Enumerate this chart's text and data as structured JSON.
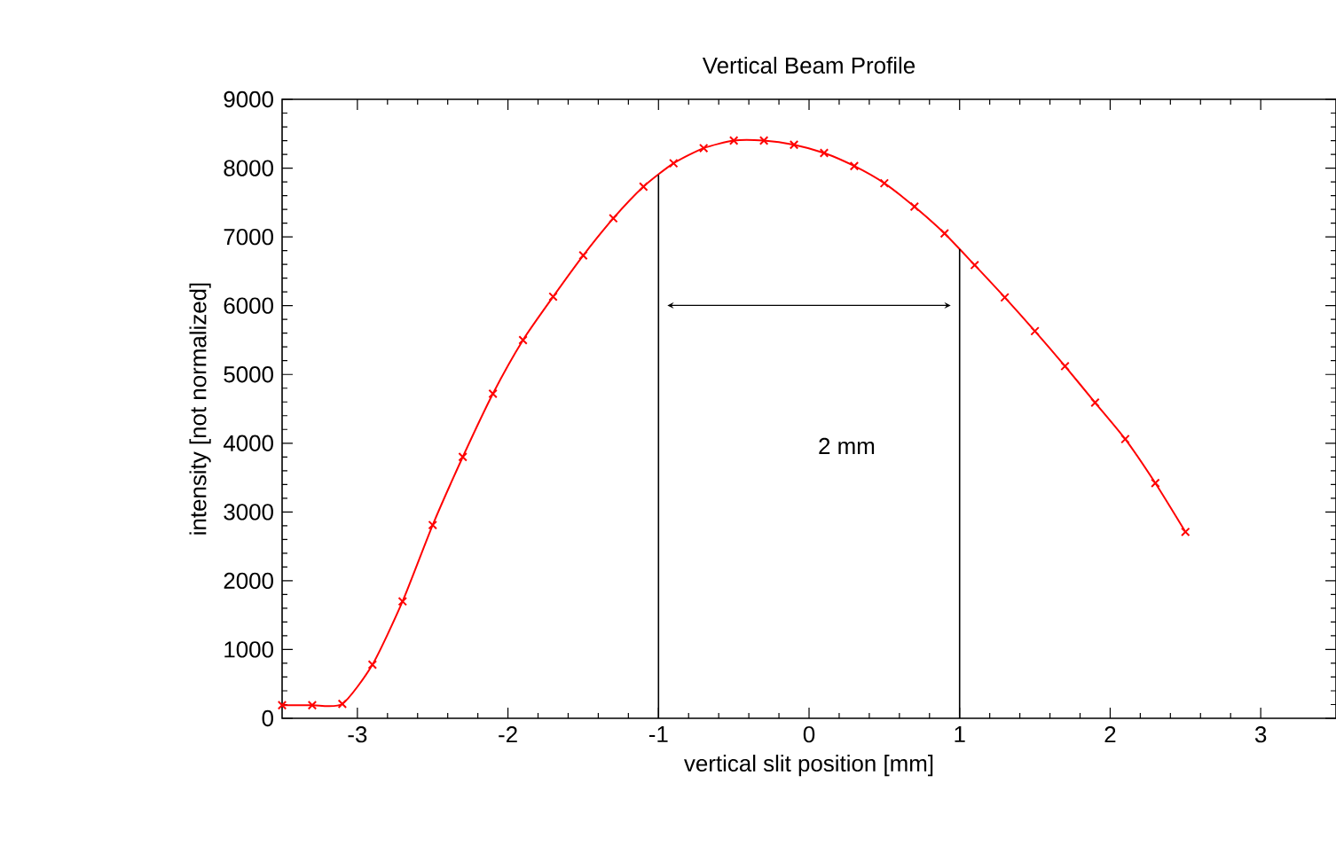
{
  "chart_data": {
    "type": "line",
    "title": "Vertical Beam Profile",
    "xlabel": "vertical slit position [mm]",
    "ylabel": "intensity [not normalized]",
    "x": [
      -3.5,
      -3.3,
      -3.1,
      -2.9,
      -2.7,
      -2.5,
      -2.3,
      -2.1,
      -1.9,
      -1.7,
      -1.5,
      -1.3,
      -1.1,
      -0.9,
      -0.7,
      -0.5,
      -0.3,
      -0.1,
      0.1,
      0.3,
      0.5,
      0.7,
      0.9,
      1.1,
      1.3,
      1.5,
      1.7,
      1.9,
      2.1,
      2.3,
      2.5
    ],
    "series": [
      {
        "color": "#ff0000",
        "values": [
          190,
          190,
          210,
          780,
          1700,
          2810,
          3800,
          4720,
          5500,
          6130,
          6730,
          7270,
          7730,
          8070,
          8290,
          8400,
          8400,
          8340,
          8220,
          8030,
          7780,
          7440,
          7050,
          6590,
          6120,
          5630,
          5120,
          4590,
          4060,
          3420,
          2710
        ]
      }
    ],
    "xlim": [
      -3.5,
      3.5
    ],
    "ylim": [
      0,
      9000
    ],
    "xticks": [
      -3,
      -2,
      -1,
      0,
      1,
      2,
      3
    ],
    "yticks": [
      0,
      1000,
      2000,
      3000,
      4000,
      5000,
      6000,
      7000,
      8000,
      9000
    ],
    "marker": "cross",
    "line_style": "solid",
    "grid": false,
    "ref_lines": [
      {
        "axis": "x",
        "value": -1,
        "color": "#000000"
      },
      {
        "axis": "x",
        "value": 1,
        "color": "#000000"
      }
    ],
    "annotations": [
      "2 mm"
    ]
  }
}
